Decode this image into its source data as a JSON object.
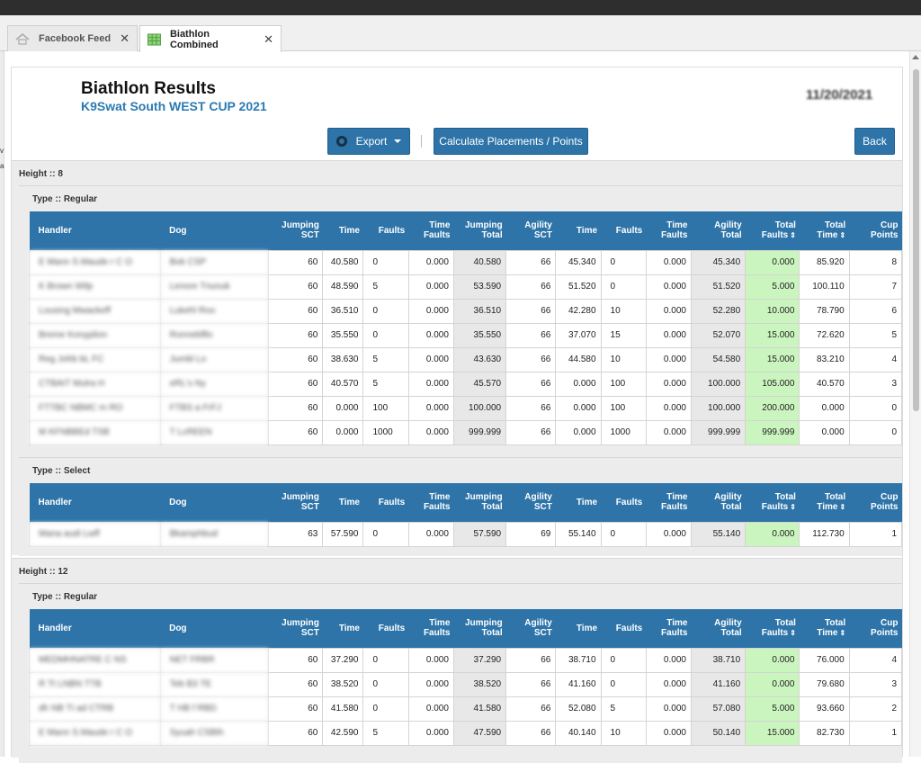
{
  "tabs": [
    {
      "label": "Facebook Feed",
      "icon": "home-icon",
      "active": false
    },
    {
      "label": "Biathlon Combined",
      "icon": "spreadsheet-icon",
      "active": true
    }
  ],
  "header": {
    "title": "Biathlon Results",
    "subtitle": "K9Swat South WEST CUP 2021",
    "date": "11/20/2021"
  },
  "toolbar": {
    "export_label": "Export",
    "calculate_label": "Calculate Placements / Points",
    "back_label": "Back"
  },
  "columns": [
    "Handler",
    "Dog",
    "Jumping SCT",
    "Time",
    "Faults",
    "Time Faults",
    "Jumping Total",
    "Agility SCT",
    "Time",
    "Faults",
    "Time Faults",
    "Agility Total",
    "Total Faults",
    "Total Time",
    "Cup Points"
  ],
  "groups": [
    {
      "height_label": "Height :: 8",
      "types": [
        {
          "type_label": "Type :: Regular",
          "rows": [
            [
              "E Mann S.Maude r C O",
              "Bok CSP",
              "60",
              "40.580",
              "0",
              "0.000",
              "40.580",
              "66",
              "45.340",
              "0",
              "0.000",
              "45.340",
              "0.000",
              "85.920",
              "8"
            ],
            [
              "K Brown Wilp",
              "Lenore Tnunuk",
              "60",
              "48.590",
              "5",
              "0.000",
              "53.590",
              "66",
              "51.520",
              "0",
              "0.000",
              "51.520",
              "5.000",
              "100.110",
              "7"
            ],
            [
              "Lousing Mwackeff",
              "Lukehl Roo",
              "60",
              "36.510",
              "0",
              "0.000",
              "36.510",
              "66",
              "42.280",
              "10",
              "0.000",
              "52.280",
              "10.000",
              "78.790",
              "6"
            ],
            [
              "Breme Konyplion",
              "Ronnebfllo",
              "60",
              "35.550",
              "0",
              "0.000",
              "35.550",
              "66",
              "37.070",
              "15",
              "0.000",
              "52.070",
              "15.000",
              "72.620",
              "5"
            ],
            [
              "Reg Johb bL FC",
              "Jumbl Lo",
              "60",
              "38.630",
              "5",
              "0.000",
              "43.630",
              "66",
              "44.580",
              "10",
              "0.000",
              "54.580",
              "15.000",
              "83.210",
              "4"
            ],
            [
              "CTBAIT Mulra H",
              "eRL's Ny",
              "60",
              "40.570",
              "5",
              "0.000",
              "45.570",
              "66",
              "0.000",
              "100",
              "0.000",
              "100.000",
              "105.000",
              "40.570",
              "3"
            ],
            [
              "FTTBC NBMC m RO",
              "FTBS a FrFJ",
              "60",
              "0.000",
              "100",
              "0.000",
              "100.000",
              "66",
              "0.000",
              "100",
              "0.000",
              "100.000",
              "200.000",
              "0.000",
              "0"
            ],
            [
              "M KFNBBEd TSB",
              "T LcREEN",
              "60",
              "0.000",
              "1000",
              "0.000",
              "999.999",
              "66",
              "0.000",
              "1000",
              "0.000",
              "999.999",
              "999.999",
              "0.000",
              "0"
            ]
          ]
        },
        {
          "type_label": "Type :: Select",
          "rows": [
            [
              "Mana audi Lwff",
              "Bkamphbud",
              "63",
              "57.590",
              "0",
              "0.000",
              "57.590",
              "69",
              "55.140",
              "0",
              "0.000",
              "55.140",
              "0.000",
              "112.730",
              "1"
            ]
          ]
        }
      ]
    },
    {
      "height_label": "Height :: 12",
      "types": [
        {
          "type_label": "Type :: Regular",
          "rows": [
            [
              "MEDMHNATRE C NS",
              "NET FRBR",
              "60",
              "37.290",
              "0",
              "0.000",
              "37.290",
              "66",
              "38.710",
              "0",
              "0.000",
              "38.710",
              "0.000",
              "76.000",
              "4"
            ],
            [
              "R Tt LNBN TTB",
              "Teb B3 TE",
              "60",
              "38.520",
              "0",
              "0.000",
              "38.520",
              "66",
              "41.160",
              "0",
              "0.000",
              "41.160",
              "0.000",
              "79.680",
              "3"
            ],
            [
              "dh NB TI ad CTRB",
              "T HB f RBD",
              "60",
              "41.580",
              "0",
              "0.000",
              "41.580",
              "66",
              "52.080",
              "5",
              "0.000",
              "57.080",
              "5.000",
              "93.660",
              "2"
            ],
            [
              "E Mann S.Maude r C O",
              "Syuah CSBth",
              "60",
              "42.590",
              "5",
              "0.000",
              "47.590",
              "66",
              "40.140",
              "10",
              "0.000",
              "50.140",
              "15.000",
              "82.730",
              "1"
            ]
          ]
        }
      ]
    }
  ]
}
